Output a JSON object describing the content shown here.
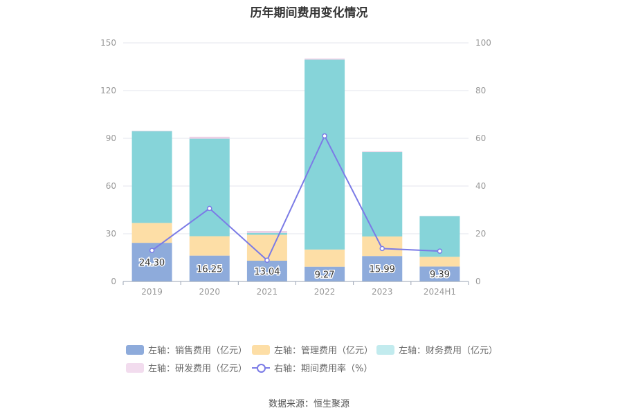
{
  "chart_data": {
    "type": "bar",
    "title": "历年期间费用变化情况",
    "categories": [
      "2019",
      "2020",
      "2021",
      "2022",
      "2023",
      "2024H1"
    ],
    "y_left": {
      "ticks": [
        "0",
        "30",
        "60",
        "90",
        "120",
        "150"
      ],
      "range": [
        0,
        150
      ]
    },
    "y_right": {
      "ticks": [
        "0",
        "20",
        "40",
        "60",
        "80",
        "100"
      ],
      "range": [
        0,
        100
      ]
    },
    "series": [
      {
        "name": "左轴：销售费用（亿元）",
        "axis": "left",
        "stacked": true,
        "color": "#8eabdb",
        "values": [
          24.3,
          16.25,
          13.04,
          9.27,
          15.99,
          9.39
        ],
        "labels": [
          "24.30",
          "16.25",
          "13.04",
          "9.27",
          "15.99",
          "9.39"
        ]
      },
      {
        "name": "左轴：管理费用（亿元）",
        "axis": "left",
        "stacked": true,
        "color": "#fddea6",
        "values": [
          12.5,
          12.2,
          16.3,
          10.8,
          12.3,
          6.1
        ]
      },
      {
        "name": "左轴：财务费用（亿元）",
        "axis": "left",
        "stacked": true,
        "color": "#86d4d9",
        "values": [
          57.7,
          61.3,
          1.2,
          119.4,
          53.0,
          25.6
        ]
      },
      {
        "name": "左轴：研发费用（亿元）",
        "axis": "left",
        "stacked": true,
        "color": "#ecd0e6",
        "values": [
          0.3,
          1.2,
          1.2,
          0.7,
          0.5,
          0.1
        ]
      },
      {
        "name": "右轴：期间费用率（%）",
        "axis": "right",
        "type": "line",
        "color": "#7b7be6",
        "values": [
          13.0,
          30.6,
          8.9,
          61.0,
          13.8,
          12.7
        ]
      }
    ],
    "legend_position": "bottom",
    "grid": true
  },
  "source": "数据来源：恒生聚源"
}
